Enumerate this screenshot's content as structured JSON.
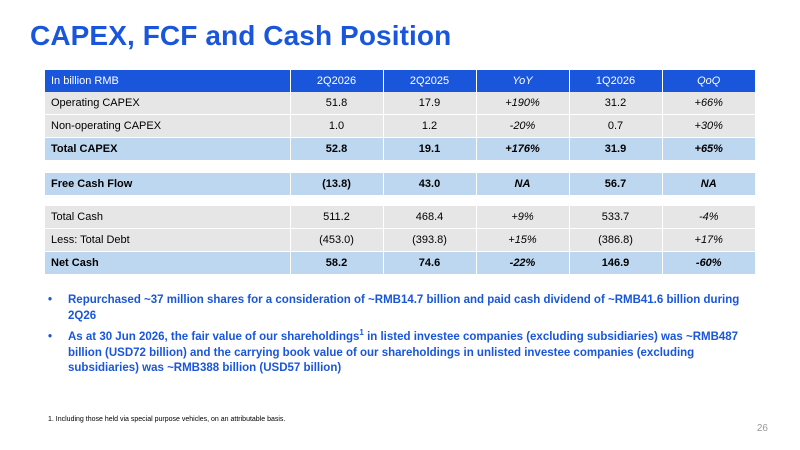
{
  "title": "CAPEX, FCF and Cash Position",
  "table_header": [
    "In billion RMB",
    "2Q2026",
    "2Q2025",
    "YoY",
    "1Q2026",
    "QoQ"
  ],
  "capex_rows": [
    [
      "Operating CAPEX",
      "51.8",
      "17.9",
      "+190%",
      "31.2",
      "+66%"
    ],
    [
      "Non-operating CAPEX",
      "1.0",
      "1.2",
      "-20%",
      "0.7",
      "+30%"
    ],
    [
      "Total CAPEX",
      "52.8",
      "19.1",
      "+176%",
      "31.9",
      "+65%"
    ]
  ],
  "fcf_row": [
    "Free Cash Flow",
    "(13.8)",
    "43.0",
    "NA",
    "56.7",
    "NA"
  ],
  "cash_rows": [
    [
      "Total Cash",
      "511.2",
      "468.4",
      "+9%",
      "533.7",
      "-4%"
    ],
    [
      "Less: Total Debt",
      "(453.0)",
      "(393.8)",
      "+15%",
      "(386.8)",
      "+17%"
    ],
    [
      "Net Cash",
      "58.2",
      "74.6",
      "-22%",
      "146.9",
      "-60%"
    ]
  ],
  "bullets": {
    "b1": "Repurchased ~37 million shares for a consideration of ~RMB14.7 billion and paid cash dividend of ~RMB41.6 billion during 2Q26",
    "b2_pre": "As at 30 Jun 2026, the fair value of our shareholdings",
    "b2_sup": "1",
    "b2_post": " in listed investee companies (excluding subsidiaries) was ~RMB487 billion (USD72 billion) and the carrying book value of our shareholdings in unlisted investee companies (excluding subsidiaries) was ~RMB388 billion (USD57 billion)"
  },
  "bullet_symbol": "•",
  "footnote": "1. Including those held via special purpose vehicles, on an attributable basis.",
  "page_number": "26",
  "colors": {
    "accent": "#1a56db",
    "header_bg": "#1a56db",
    "row_grey": "#e6e6e6",
    "row_total": "#bed7f0"
  }
}
